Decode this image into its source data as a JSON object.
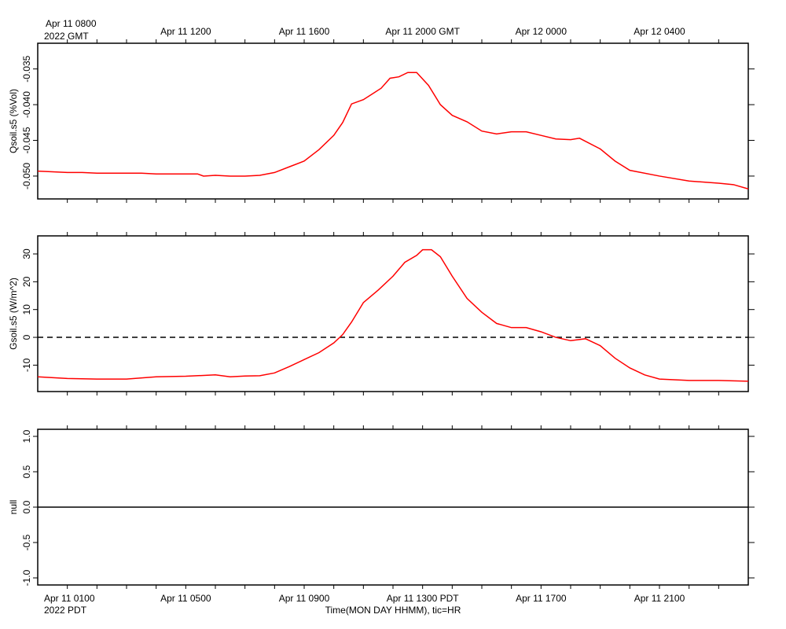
{
  "chart_data": [
    {
      "type": "line",
      "ylabel": "Qsoil.s5 (%Vol)",
      "ylim": [
        -0.0532,
        -0.0314
      ],
      "yticks": [
        -0.05,
        -0.045,
        -0.04,
        -0.035
      ],
      "ytick_labels": [
        "-0.050",
        "-0.045",
        "-0.040",
        "-0.035"
      ],
      "xlim": [
        0,
        24
      ],
      "series": [
        {
          "color": "#ff0000",
          "points": [
            [
              0.0,
              -0.0493
            ],
            [
              0.5,
              -0.0494
            ],
            [
              1.0,
              -0.0495
            ],
            [
              1.5,
              -0.0495
            ],
            [
              2.0,
              -0.0496
            ],
            [
              2.5,
              -0.0496
            ],
            [
              3.0,
              -0.0496
            ],
            [
              3.5,
              -0.0496
            ],
            [
              4.0,
              -0.0497
            ],
            [
              4.5,
              -0.0497
            ],
            [
              5.0,
              -0.0497
            ],
            [
              5.4,
              -0.0497
            ],
            [
              5.6,
              -0.05
            ],
            [
              6.0,
              -0.0499
            ],
            [
              6.5,
              -0.05
            ],
            [
              7.0,
              -0.05
            ],
            [
              7.5,
              -0.0499
            ],
            [
              8.0,
              -0.0495
            ],
            [
              8.5,
              -0.0487
            ],
            [
              9.0,
              -0.0479
            ],
            [
              9.5,
              -0.0463
            ],
            [
              10.0,
              -0.0443
            ],
            [
              10.3,
              -0.0425
            ],
            [
              10.6,
              -0.0399
            ],
            [
              11.0,
              -0.0393
            ],
            [
              11.3,
              -0.0385
            ],
            [
              11.6,
              -0.0377
            ],
            [
              11.9,
              -0.0363
            ],
            [
              12.2,
              -0.0361
            ],
            [
              12.5,
              -0.0355
            ],
            [
              12.8,
              -0.0355
            ],
            [
              13.2,
              -0.0373
            ],
            [
              13.6,
              -0.04
            ],
            [
              14.0,
              -0.0415
            ],
            [
              14.5,
              -0.0424
            ],
            [
              15.0,
              -0.0437
            ],
            [
              15.5,
              -0.0441
            ],
            [
              16.0,
              -0.0438
            ],
            [
              16.5,
              -0.0438
            ],
            [
              17.0,
              -0.0443
            ],
            [
              17.5,
              -0.0448
            ],
            [
              18.0,
              -0.0449
            ],
            [
              18.3,
              -0.0447
            ],
            [
              19.0,
              -0.0462
            ],
            [
              19.5,
              -0.0479
            ],
            [
              20.0,
              -0.0492
            ],
            [
              21.0,
              -0.05
            ],
            [
              22.0,
              -0.0507
            ],
            [
              23.0,
              -0.051
            ],
            [
              23.5,
              -0.0512
            ],
            [
              24.0,
              -0.0518
            ]
          ]
        }
      ]
    },
    {
      "type": "line",
      "ylabel": "Gsoil.s5 (W/m^2)",
      "ylim": [
        -19.5,
        36.5
      ],
      "yticks": [
        -10,
        0,
        10,
        20,
        30
      ],
      "ytick_labels": [
        "-10",
        "0",
        "10",
        "20",
        "30"
      ],
      "xlim": [
        0,
        24
      ],
      "reference_line": 0,
      "series": [
        {
          "color": "#ff0000",
          "points": [
            [
              0.0,
              -14.2
            ],
            [
              1.0,
              -14.8
            ],
            [
              2.0,
              -15.0
            ],
            [
              3.0,
              -15.0
            ],
            [
              4.0,
              -14.2
            ],
            [
              5.0,
              -14.0
            ],
            [
              6.0,
              -13.5
            ],
            [
              6.5,
              -14.2
            ],
            [
              7.0,
              -13.9
            ],
            [
              7.5,
              -13.8
            ],
            [
              8.0,
              -12.8
            ],
            [
              8.5,
              -10.5
            ],
            [
              9.0,
              -8.0
            ],
            [
              9.5,
              -5.5
            ],
            [
              10.0,
              -2.0
            ],
            [
              10.3,
              1.0
            ],
            [
              10.6,
              5.5
            ],
            [
              11.0,
              12.5
            ],
            [
              11.5,
              17.0
            ],
            [
              12.0,
              22.0
            ],
            [
              12.4,
              27.0
            ],
            [
              12.8,
              29.5
            ],
            [
              13.0,
              31.5
            ],
            [
              13.3,
              31.5
            ],
            [
              13.6,
              29.0
            ],
            [
              14.0,
              22.0
            ],
            [
              14.5,
              14.0
            ],
            [
              15.0,
              9.0
            ],
            [
              15.5,
              5.0
            ],
            [
              16.0,
              3.5
            ],
            [
              16.5,
              3.5
            ],
            [
              17.0,
              2.0
            ],
            [
              17.5,
              0.0
            ],
            [
              18.0,
              -1.2
            ],
            [
              18.5,
              -0.5
            ],
            [
              19.0,
              -3.0
            ],
            [
              19.5,
              -7.5
            ],
            [
              20.0,
              -11.0
            ],
            [
              20.5,
              -13.5
            ],
            [
              21.0,
              -15.0
            ],
            [
              22.0,
              -15.5
            ],
            [
              23.0,
              -15.5
            ],
            [
              24.0,
              -15.8
            ]
          ]
        }
      ]
    },
    {
      "type": "line",
      "ylabel": "null",
      "ylim": [
        -1.1,
        1.1
      ],
      "yticks": [
        -1.0,
        -0.5,
        0.0,
        0.5,
        1.0
      ],
      "ytick_labels": [
        "-1.0",
        "-0.5",
        "0.0",
        "0.5",
        "1.0"
      ],
      "xlim": [
        0,
        24
      ],
      "series": [
        {
          "color": "#000000",
          "points": [
            [
              0,
              0
            ],
            [
              24,
              0
            ]
          ]
        }
      ]
    }
  ],
  "top_axis": {
    "first_label": "Apr 11 0800",
    "first_label_line2": "2022 GMT",
    "labels": [
      {
        "x": 5,
        "text": "Apr 11 1200"
      },
      {
        "x": 9,
        "text": "Apr 11 1600"
      },
      {
        "x": 13,
        "text": "Apr 11 2000 GMT"
      },
      {
        "x": 17,
        "text": "Apr 12 0000"
      },
      {
        "x": 21,
        "text": "Apr 12 0400"
      }
    ]
  },
  "bottom_axis": {
    "first_label": "Apr 11 0100",
    "first_label_line2": "2022 PDT",
    "labels": [
      {
        "x": 5,
        "text": "Apr 11 0500"
      },
      {
        "x": 9,
        "text": "Apr 11 0900"
      },
      {
        "x": 13,
        "text": "Apr 11 1300 PDT"
      },
      {
        "x": 17,
        "text": "Apr 11 1700"
      },
      {
        "x": 21,
        "text": "Apr 11 2100"
      }
    ],
    "title": "Time(MON DAY HHMM), tic=HR"
  }
}
